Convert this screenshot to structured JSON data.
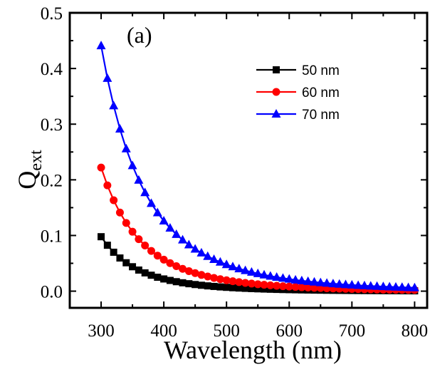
{
  "chart_data": {
    "type": "line",
    "panel_label": "(a)",
    "xlabel": "Wavelength (nm)",
    "ylabel_main": "Q",
    "ylabel_sub": "ext",
    "xlim": [
      250,
      820
    ],
    "ylim": [
      -0.03,
      0.5
    ],
    "xticks": [
      300,
      400,
      500,
      600,
      700,
      800
    ],
    "yticks": [
      0.0,
      0.1,
      0.2,
      0.3,
      0.4,
      0.5
    ],
    "ytick_labels": [
      "0.0",
      "0.1",
      "0.2",
      "0.3",
      "0.4",
      "0.5"
    ],
    "legend_position": "upper-right",
    "series": [
      {
        "name": "50 nm",
        "color": "#000000",
        "marker": "square",
        "A": 0.0978,
        "p": 5.2
      },
      {
        "name": "60 nm",
        "color": "#ff0000",
        "marker": "circle",
        "A": 0.222,
        "p": 4.75
      },
      {
        "name": "70 nm",
        "color": "#0000ff",
        "marker": "triangle",
        "A": 0.441,
        "p": 4.35
      }
    ],
    "x": [
      300,
      310,
      320,
      330,
      340,
      350,
      360,
      370,
      380,
      390,
      400,
      410,
      420,
      430,
      440,
      450,
      460,
      470,
      480,
      490,
      500,
      510,
      520,
      530,
      540,
      550,
      560,
      570,
      580,
      590,
      600,
      610,
      620,
      630,
      640,
      650,
      660,
      670,
      680,
      690,
      700,
      710,
      720,
      730,
      740,
      750,
      760,
      770,
      780,
      790,
      800
    ]
  }
}
